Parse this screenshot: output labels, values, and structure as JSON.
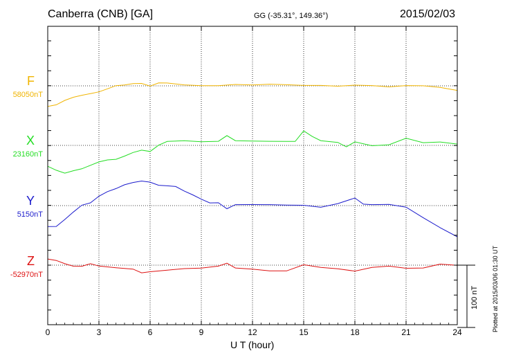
{
  "header": {
    "station": "Canberra (CNB)  [GA]",
    "coordinates": "GG (-35.31°, 149.36°)",
    "date": "2015/02/03"
  },
  "footer": {
    "plotted": "Plotted at 2015/03/06 01:30 UT"
  },
  "chart_data": {
    "type": "line",
    "title": "Canberra (CNB)  [GA]",
    "xlabel": "U T (hour)",
    "ylabel": "",
    "xlim": [
      0,
      24
    ],
    "x_ticks": [
      "0",
      "3",
      "6",
      "9",
      "12",
      "15",
      "18",
      "21",
      "24"
    ],
    "scale_bar": {
      "label": "100 nT",
      "value_nT": 100
    },
    "grid": true,
    "series": [
      {
        "name": "F",
        "baseline_label": "58050nT",
        "color": "#f0b400",
        "x": [
          0,
          0.5,
          1,
          1.5,
          2,
          2.5,
          3,
          3.5,
          4,
          4.5,
          5,
          5.5,
          6,
          6.5,
          7,
          7.5,
          8,
          9,
          10,
          11,
          12,
          13,
          14,
          15,
          16,
          17,
          18,
          19,
          20,
          21,
          22,
          23,
          24
        ],
        "values": [
          -33,
          -30,
          -24,
          -18,
          -15,
          -13,
          -9,
          -5,
          0,
          2,
          3,
          4,
          0,
          4,
          5,
          3,
          1,
          1,
          0,
          2,
          2,
          2,
          2,
          1,
          0,
          0,
          1,
          0,
          -1,
          0,
          0,
          -2,
          -8
        ]
      },
      {
        "name": "X",
        "baseline_label": "23160nT",
        "color": "#22dd22",
        "x": [
          0,
          0.5,
          1,
          1.5,
          2,
          2.5,
          3,
          3.5,
          4,
          4.5,
          5,
          5.5,
          6,
          6.5,
          7,
          8,
          9,
          10,
          10.5,
          11,
          12,
          13,
          14,
          14.5,
          15,
          15.5,
          16,
          17,
          17.5,
          18,
          19,
          20,
          21,
          22,
          23,
          24
        ],
        "values": [
          -33,
          -40,
          -45,
          -40,
          -38,
          -32,
          -26,
          -24,
          -22,
          -17,
          -12,
          -7,
          -10,
          0,
          7,
          7,
          6,
          7,
          15,
          8,
          7,
          6,
          7,
          6,
          23,
          15,
          7,
          5,
          -2,
          5,
          0,
          1,
          11,
          5,
          5,
          2
        ]
      },
      {
        "name": "Y",
        "baseline_label": "5150nT",
        "color": "#1a1acc",
        "x": [
          0,
          0.5,
          1,
          1.5,
          2,
          2.5,
          3,
          3.5,
          4,
          4.5,
          5,
          5.5,
          6,
          6.5,
          7,
          7.5,
          8,
          8.5,
          9,
          9.5,
          10,
          10.5,
          11,
          12,
          13,
          14,
          15,
          16,
          17,
          18,
          18.5,
          19,
          20,
          21,
          22,
          23,
          24
        ],
        "values": [
          -33,
          -34,
          -22,
          -10,
          0,
          5,
          15,
          22,
          28,
          33,
          37,
          40,
          37,
          33,
          32,
          30,
          24,
          17,
          10,
          5,
          4,
          -5,
          2,
          1,
          2,
          1,
          0,
          -2,
          3,
          12,
          3,
          1,
          2,
          -2,
          -20,
          -35,
          -50
        ]
      },
      {
        "name": "Z",
        "baseline_label": "-52970nT",
        "color": "#dd1111",
        "x": [
          0,
          0.5,
          1,
          1.5,
          2,
          2.5,
          3,
          4,
          5,
          5.5,
          6,
          7,
          8,
          9,
          10,
          10.5,
          11,
          12,
          13,
          14,
          15,
          16,
          17,
          18,
          19,
          20,
          21,
          22,
          23,
          24
        ],
        "values": [
          10,
          7,
          3,
          -2,
          -2,
          3,
          -2,
          -4,
          -6,
          -13,
          -10,
          -8,
          -6,
          -4,
          -2,
          3,
          -4,
          -7,
          -9,
          -9,
          0,
          -3,
          -6,
          -10,
          -3,
          -2,
          -5,
          -4,
          1,
          0
        ]
      }
    ]
  }
}
